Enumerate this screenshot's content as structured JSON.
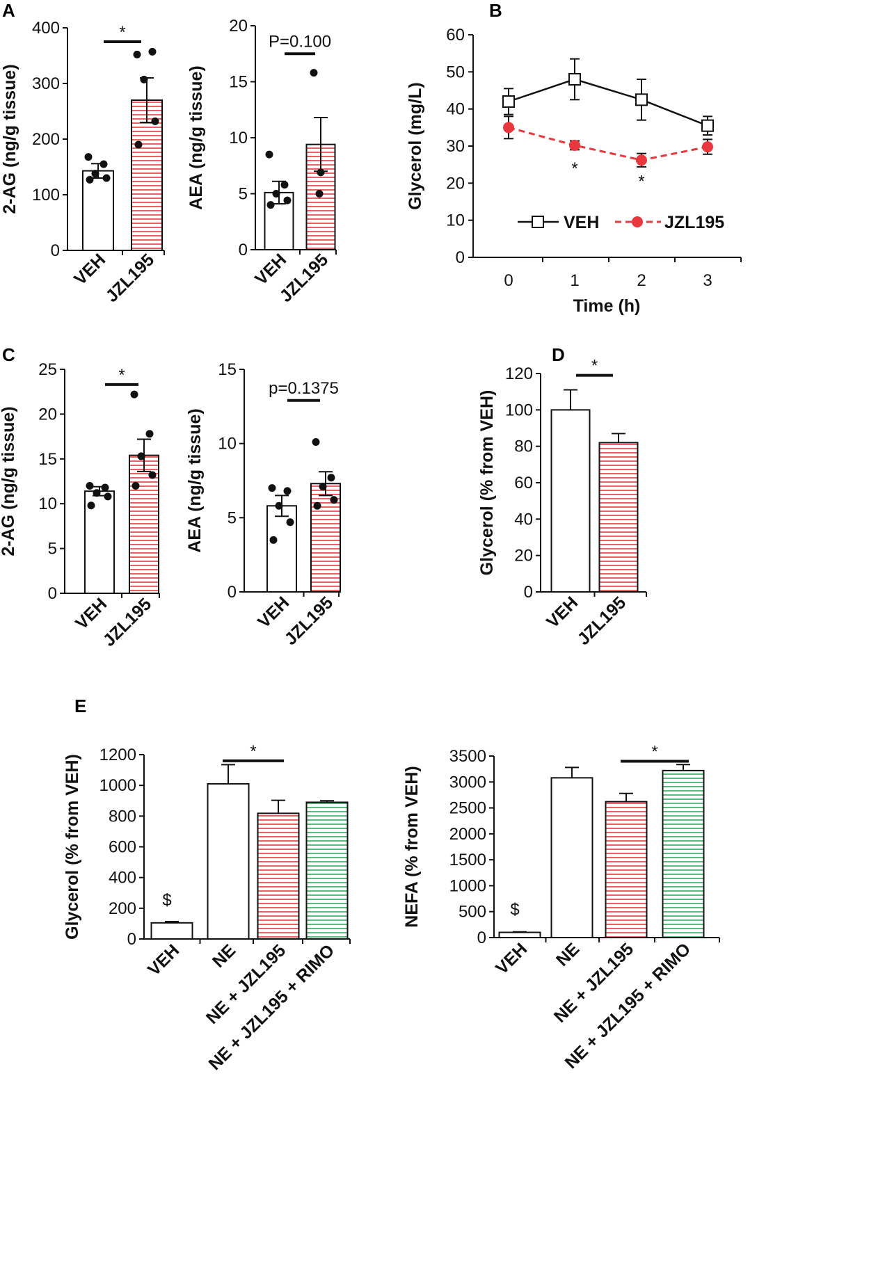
{
  "colors": {
    "axis": "#111111",
    "veh_fill": "#ffffff",
    "jzl_stripe": "#e8383d",
    "rimo_stripe": "#2faa5c",
    "jzl_marker": "#e8383d"
  },
  "panel_labels": {
    "a": "A",
    "b": "B",
    "c": "C",
    "d": "D",
    "e": "E"
  },
  "chart_data": [
    {
      "id": "A1",
      "type": "bar",
      "panel": "A",
      "ylabel": "2-AG (ng/g tissue)",
      "ylim": [
        0,
        400
      ],
      "yticks": [
        "0",
        "100",
        "200",
        "300",
        "400"
      ],
      "categories": [
        "VEH",
        "JZL195"
      ],
      "values": [
        143,
        270
      ],
      "errors": [
        13,
        40
      ],
      "points": [
        [
          168,
          155,
          138,
          130,
          127
        ],
        [
          352,
          357,
          307,
          232,
          190
        ]
      ],
      "significance": {
        "label": "*",
        "between": [
          0,
          1
        ],
        "y": 375
      }
    },
    {
      "id": "A2",
      "type": "bar",
      "panel": "A",
      "ylabel": "AEA (ng/g tissue)",
      "ylim": [
        0,
        20
      ],
      "yticks": [
        "0",
        "5",
        "10",
        "15",
        "20"
      ],
      "categories": [
        "VEH",
        "JZL195"
      ],
      "values": [
        5.1,
        9.4
      ],
      "errors": [
        1.0,
        2.4
      ],
      "points": [
        [
          8.5,
          5.8,
          5.0,
          4.4,
          4.0
        ],
        [
          15.8,
          6.9,
          5.0
        ]
      ],
      "significance": {
        "label": "P=0.100",
        "between": [
          0,
          1
        ],
        "y": 17.5
      }
    },
    {
      "id": "B",
      "type": "line",
      "panel": "B",
      "xlabel": "Time (h)",
      "ylabel": "Glycerol (mg/L)",
      "ylim": [
        0,
        60
      ],
      "yticks": [
        "0",
        "10",
        "20",
        "30",
        "40",
        "50",
        "60"
      ],
      "x": [
        0,
        1,
        2,
        3
      ],
      "xticks": [
        "0",
        "1",
        "2",
        "3"
      ],
      "series": [
        {
          "name": "VEH",
          "values": [
            42,
            48,
            42.5,
            35.5
          ],
          "errors": [
            3.5,
            5.5,
            5.5,
            2.5
          ],
          "style": "solid",
          "marker": "open-square"
        },
        {
          "name": "JZL195",
          "values": [
            35,
            30.2,
            26.2,
            29.8
          ],
          "errors": [
            3,
            1.2,
            1.8,
            2
          ],
          "style": "dashed",
          "marker": "filled-circle"
        }
      ],
      "annotations": [
        {
          "x": 1,
          "y": 24,
          "text": "*"
        },
        {
          "x": 2,
          "y": 20.5,
          "text": "*"
        }
      ]
    },
    {
      "id": "C1",
      "type": "bar",
      "panel": "C",
      "ylabel": "2-AG (ng/g tissue)",
      "ylim": [
        0,
        25
      ],
      "yticks": [
        "0",
        "5",
        "10",
        "15",
        "20",
        "25"
      ],
      "categories": [
        "VEH",
        "JZL195"
      ],
      "values": [
        11.4,
        15.4
      ],
      "errors": [
        0.5,
        1.8
      ],
      "points": [
        [
          12.0,
          11.8,
          11.2,
          10.8,
          9.8
        ],
        [
          22.2,
          17.8,
          15.3,
          13.2,
          12.0
        ]
      ],
      "significance": {
        "label": "*",
        "between": [
          0,
          1
        ],
        "y": 23.3
      }
    },
    {
      "id": "C2",
      "type": "bar",
      "panel": "C",
      "ylabel": "AEA (ng/g tissue)",
      "ylim": [
        0,
        15
      ],
      "yticks": [
        "0",
        "5",
        "10",
        "15"
      ],
      "categories": [
        "VEH",
        "JZL195"
      ],
      "values": [
        5.8,
        7.3
      ],
      "errors": [
        0.7,
        0.8
      ],
      "points": [
        [
          7.0,
          6.8,
          5.8,
          4.7,
          3.5
        ],
        [
          10.1,
          7.7,
          7.1,
          6.2,
          5.8
        ]
      ],
      "significance": {
        "label": "p=0.1375",
        "between": [
          0,
          1
        ],
        "y": 12.9
      }
    },
    {
      "id": "D",
      "type": "bar",
      "panel": "D",
      "ylabel": "Glycerol (% from VEH)",
      "ylim": [
        0,
        120
      ],
      "yticks": [
        "0",
        "20",
        "40",
        "60",
        "80",
        "100",
        "120"
      ],
      "categories": [
        "VEH",
        "JZL195"
      ],
      "values": [
        100,
        82
      ],
      "errors": [
        11,
        5
      ],
      "significance": {
        "label": "*",
        "between": [
          0,
          1
        ],
        "y": 119
      }
    },
    {
      "id": "E1",
      "type": "bar",
      "panel": "E",
      "ylabel": "Glycerol (% from VEH)",
      "ylim": [
        0,
        1200
      ],
      "yticks": [
        "0",
        "200",
        "400",
        "600",
        "800",
        "1000",
        "1200"
      ],
      "categories": [
        "VEH",
        "NE",
        "NE + JZL195",
        "NE + JZL195 + RIMO"
      ],
      "values": [
        105,
        1010,
        818,
        890
      ],
      "errors": [
        8,
        125,
        85,
        10
      ],
      "bar_labels": [
        "$",
        "",
        "",
        ""
      ],
      "significance": {
        "label": "*",
        "between": [
          1,
          2
        ],
        "y": 1160
      }
    },
    {
      "id": "E2",
      "type": "bar",
      "panel": "E",
      "ylabel": "NEFA (% from VEH)",
      "ylim": [
        0,
        3500
      ],
      "yticks": [
        "0",
        "500",
        "1000",
        "1500",
        "2000",
        "2500",
        "3000",
        "3500"
      ],
      "categories": [
        "VEH",
        "NE",
        "NE + JZL195",
        "NE + JZL195 + RIMO"
      ],
      "values": [
        100,
        3080,
        2620,
        3220
      ],
      "errors": [
        10,
        200,
        160,
        115
      ],
      "bar_labels": [
        "$",
        "",
        "",
        ""
      ],
      "significance": {
        "label": "*",
        "between": [
          2,
          3
        ],
        "y": 3400
      }
    }
  ]
}
